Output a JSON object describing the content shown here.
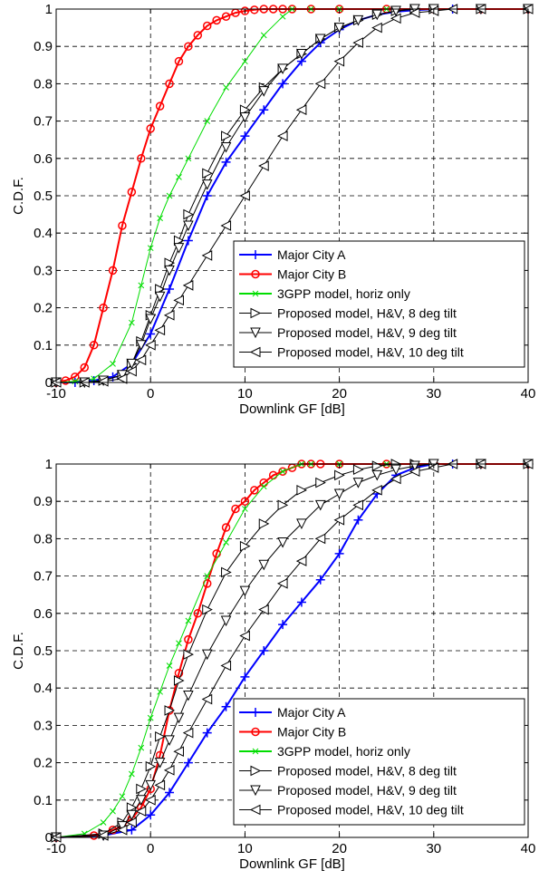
{
  "chart_data": [
    {
      "type": "line",
      "xlabel": "Downlink GF [dB]",
      "ylabel": "C.D.F.",
      "xlim": [
        -10,
        40
      ],
      "ylim": [
        0,
        1
      ],
      "xticks": [
        -10,
        0,
        10,
        20,
        30,
        40
      ],
      "yticks": [
        0,
        0.1,
        0.2,
        0.3,
        0.4,
        0.5,
        0.6,
        0.7,
        0.8,
        0.9,
        1
      ],
      "xtick_labels": [
        "-10",
        "0",
        "10",
        "20",
        "30",
        "40"
      ],
      "ytick_labels": [
        "0",
        "0.1",
        "0.2",
        "0.3",
        "0.4",
        "0.5",
        "0.6",
        "0.7",
        "0.8",
        "0.9",
        "1"
      ],
      "grid": true,
      "legend_position": "bottom-right",
      "series": [
        {
          "name": "Major City A",
          "color": "#0000ff",
          "marker": "plus",
          "x": [
            -10,
            -8,
            -6,
            -4,
            -2,
            0,
            2,
            4,
            6,
            8,
            10,
            12,
            14,
            16,
            18,
            20,
            22,
            24,
            26,
            28,
            30,
            32,
            35,
            40
          ],
          "y": [
            0,
            0,
            0.005,
            0.015,
            0.05,
            0.13,
            0.25,
            0.38,
            0.5,
            0.59,
            0.66,
            0.73,
            0.8,
            0.86,
            0.91,
            0.945,
            0.97,
            0.985,
            0.993,
            0.997,
            1,
            1,
            1,
            1
          ]
        },
        {
          "name": "Major City B",
          "color": "#ff0000",
          "marker": "circle",
          "x": [
            -10,
            -9,
            -8,
            -7,
            -6,
            -5,
            -4,
            -3,
            -2,
            -1,
            0,
            1,
            2,
            3,
            4,
            5,
            6,
            7,
            8,
            9,
            10,
            11,
            12,
            13,
            14,
            15,
            17,
            20,
            25,
            30,
            35,
            40
          ],
          "y": [
            0,
            0.005,
            0.015,
            0.04,
            0.1,
            0.2,
            0.3,
            0.42,
            0.51,
            0.6,
            0.68,
            0.74,
            0.8,
            0.86,
            0.9,
            0.93,
            0.955,
            0.97,
            0.98,
            0.99,
            0.995,
            0.998,
            1,
            1,
            1,
            1,
            1,
            1,
            1,
            1,
            1,
            1
          ]
        },
        {
          "name": "3GPP model, horiz only",
          "color": "#00dd00",
          "marker": "x",
          "x": [
            -10,
            -8,
            -6,
            -4,
            -2,
            -1,
            0,
            1,
            2,
            3,
            4,
            6,
            8,
            10,
            12,
            14,
            15,
            17,
            20,
            25,
            30,
            35,
            40
          ],
          "y": [
            0,
            0.003,
            0.01,
            0.05,
            0.16,
            0.26,
            0.36,
            0.44,
            0.5,
            0.55,
            0.6,
            0.7,
            0.79,
            0.86,
            0.93,
            0.98,
            1,
            1,
            1,
            1,
            1,
            1,
            1
          ]
        },
        {
          "name": "Proposed model, H&V, 8 deg tilt",
          "color": "#000000",
          "marker": "tri-right",
          "x": [
            -10,
            -7,
            -5,
            -3,
            -2,
            -1,
            0,
            1,
            2,
            3,
            4,
            6,
            8,
            10,
            12,
            14,
            16,
            18,
            20,
            22,
            24,
            26,
            28,
            30,
            35,
            40
          ],
          "y": [
            0,
            0,
            0.005,
            0.02,
            0.05,
            0.11,
            0.18,
            0.25,
            0.32,
            0.38,
            0.45,
            0.56,
            0.66,
            0.73,
            0.79,
            0.84,
            0.88,
            0.92,
            0.95,
            0.97,
            0.985,
            0.995,
            1,
            1,
            1,
            1
          ]
        },
        {
          "name": "Proposed model, H&V, 9 deg tilt",
          "color": "#000000",
          "marker": "tri-down",
          "x": [
            -10,
            -7,
            -5,
            -3,
            -2,
            -1,
            0,
            1,
            2,
            3,
            4,
            6,
            8,
            10,
            12,
            14,
            16,
            18,
            20,
            22,
            24,
            26,
            28,
            30,
            35,
            40
          ],
          "y": [
            0,
            0,
            0.005,
            0.02,
            0.05,
            0.1,
            0.17,
            0.23,
            0.3,
            0.36,
            0.42,
            0.53,
            0.63,
            0.71,
            0.78,
            0.84,
            0.88,
            0.92,
            0.95,
            0.97,
            0.985,
            0.995,
            1,
            1,
            1,
            1
          ]
        },
        {
          "name": "Proposed model, H&V, 10 deg tilt",
          "color": "#000000",
          "marker": "tri-left",
          "x": [
            -10,
            -7,
            -5,
            -3,
            -2,
            -1,
            0,
            1,
            2,
            3,
            4,
            6,
            8,
            10,
            12,
            14,
            16,
            18,
            20,
            22,
            24,
            26,
            28,
            30,
            32,
            35,
            40
          ],
          "y": [
            0,
            0,
            0.003,
            0.01,
            0.03,
            0.06,
            0.1,
            0.14,
            0.18,
            0.22,
            0.26,
            0.34,
            0.42,
            0.5,
            0.58,
            0.66,
            0.73,
            0.8,
            0.86,
            0.91,
            0.95,
            0.975,
            0.99,
            0.995,
            1,
            1,
            1
          ]
        }
      ]
    },
    {
      "type": "line",
      "xlabel": "Downlink GF [dB]",
      "ylabel": "C.D.F.",
      "xlim": [
        -10,
        40
      ],
      "ylim": [
        0,
        1
      ],
      "xticks": [
        -10,
        0,
        10,
        20,
        30,
        40
      ],
      "yticks": [
        0,
        0.1,
        0.2,
        0.3,
        0.4,
        0.5,
        0.6,
        0.7,
        0.8,
        0.9,
        1
      ],
      "xtick_labels": [
        "-10",
        "0",
        "10",
        "20",
        "30",
        "40"
      ],
      "ytick_labels": [
        "0",
        "0.1",
        "0.2",
        "0.3",
        "0.4",
        "0.5",
        "0.6",
        "0.7",
        "0.8",
        "0.9",
        "1"
      ],
      "grid": true,
      "legend_position": "bottom-right",
      "series": [
        {
          "name": "Major City A",
          "color": "#0000ff",
          "marker": "plus",
          "x": [
            -10,
            -5,
            -2,
            0,
            2,
            4,
            6,
            8,
            10,
            12,
            14,
            16,
            18,
            20,
            22,
            24,
            26,
            28,
            30,
            32,
            35,
            40
          ],
          "y": [
            0,
            0.005,
            0.02,
            0.06,
            0.12,
            0.2,
            0.28,
            0.35,
            0.43,
            0.5,
            0.57,
            0.63,
            0.69,
            0.76,
            0.85,
            0.92,
            0.97,
            0.99,
            1,
            1,
            1,
            1
          ]
        },
        {
          "name": "Major City B",
          "color": "#ff0000",
          "marker": "circle",
          "x": [
            -10,
            -6,
            -4,
            -3,
            -2,
            -1,
            0,
            1,
            2,
            3,
            4,
            5,
            6,
            7,
            8,
            9,
            10,
            11,
            12,
            13,
            14,
            15,
            16,
            17,
            18,
            20,
            25,
            30,
            35,
            40
          ],
          "y": [
            0,
            0.005,
            0.02,
            0.03,
            0.05,
            0.08,
            0.13,
            0.22,
            0.34,
            0.44,
            0.53,
            0.6,
            0.68,
            0.76,
            0.83,
            0.88,
            0.9,
            0.93,
            0.95,
            0.97,
            0.98,
            0.99,
            1,
            1,
            1,
            1,
            1,
            1,
            1,
            1
          ]
        },
        {
          "name": "3GPP model, horiz only",
          "color": "#00dd00",
          "marker": "x",
          "x": [
            -10,
            -7,
            -5,
            -4,
            -3,
            -2,
            -1,
            0,
            1,
            2,
            3,
            4,
            6,
            8,
            10,
            12,
            14,
            16,
            17,
            20,
            25,
            30,
            35,
            40
          ],
          "y": [
            0,
            0.01,
            0.04,
            0.07,
            0.11,
            0.17,
            0.24,
            0.32,
            0.39,
            0.46,
            0.52,
            0.58,
            0.7,
            0.79,
            0.88,
            0.94,
            0.98,
            1,
            1,
            1,
            1,
            1,
            1,
            1
          ]
        },
        {
          "name": "Proposed model, H&V, 8 deg tilt",
          "color": "#000000",
          "marker": "tri-right",
          "x": [
            -10,
            -5,
            -3,
            -2,
            -1,
            0,
            1,
            2,
            3,
            4,
            6,
            8,
            10,
            12,
            14,
            16,
            18,
            20,
            22,
            24,
            26,
            28,
            30,
            35,
            40
          ],
          "y": [
            0,
            0.01,
            0.04,
            0.08,
            0.13,
            0.19,
            0.27,
            0.34,
            0.42,
            0.49,
            0.61,
            0.71,
            0.78,
            0.84,
            0.89,
            0.93,
            0.95,
            0.97,
            0.985,
            0.995,
            1,
            1,
            1,
            1,
            1
          ]
        },
        {
          "name": "Proposed model, H&V, 9 deg tilt",
          "color": "#000000",
          "marker": "tri-down",
          "x": [
            -10,
            -5,
            -3,
            -2,
            -1,
            0,
            1,
            2,
            3,
            4,
            6,
            8,
            10,
            12,
            14,
            16,
            18,
            20,
            22,
            24,
            26,
            28,
            30,
            35,
            40
          ],
          "y": [
            0,
            0.005,
            0.03,
            0.06,
            0.1,
            0.14,
            0.2,
            0.26,
            0.32,
            0.38,
            0.49,
            0.58,
            0.66,
            0.73,
            0.79,
            0.84,
            0.89,
            0.92,
            0.95,
            0.97,
            0.985,
            0.995,
            1,
            1,
            1
          ]
        },
        {
          "name": "Proposed model, H&V, 10 deg tilt",
          "color": "#000000",
          "marker": "tri-left",
          "x": [
            -10,
            -5,
            -3,
            -2,
            -1,
            0,
            1,
            2,
            3,
            4,
            6,
            8,
            10,
            12,
            14,
            16,
            18,
            20,
            22,
            24,
            26,
            28,
            30,
            32,
            35,
            40
          ],
          "y": [
            0,
            0.005,
            0.02,
            0.04,
            0.07,
            0.1,
            0.14,
            0.18,
            0.23,
            0.28,
            0.37,
            0.46,
            0.54,
            0.61,
            0.68,
            0.74,
            0.8,
            0.85,
            0.89,
            0.93,
            0.96,
            0.98,
            0.99,
            1,
            1,
            1
          ]
        }
      ]
    }
  ]
}
